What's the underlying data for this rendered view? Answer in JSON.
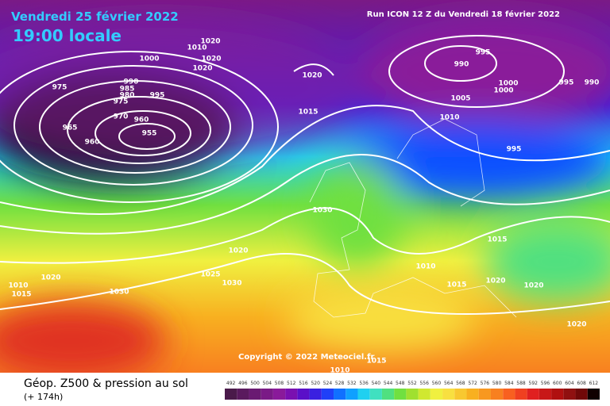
{
  "header": {
    "date": "Vendredi 25 février 2022",
    "time": "19:00 locale",
    "run": "Run ICON 12 Z du Vendredi 18 février 2022"
  },
  "copyright": "Copyright © 2022 Meteociel.fr",
  "footer": {
    "title": "Géop. Z500 & pression au sol",
    "lead": "(+ 174h)"
  },
  "isobar_labels": [
    1020,
    1010,
    1020,
    1000,
    1020,
    1020,
    990,
    985,
    980,
    975,
    995,
    975,
    970,
    965,
    960,
    955,
    960,
    1015,
    995,
    990,
    1000,
    1000,
    995,
    990,
    1005,
    1010,
    995,
    1030,
    1020,
    1025,
    1030,
    1010,
    1015,
    1020,
    1030,
    1015,
    1010,
    1015,
    1020,
    1020,
    1020,
    1015,
    1010
  ],
  "colorbar": {
    "values": [
      492,
      496,
      500,
      504,
      508,
      512,
      516,
      520,
      524,
      528,
      532,
      536,
      540,
      544,
      548,
      552,
      556,
      560,
      564,
      568,
      572,
      576,
      580,
      584,
      588,
      592,
      596,
      600,
      604,
      608,
      612
    ],
    "colors": [
      "#4a1a4a",
      "#5a1a5e",
      "#6a1a72",
      "#7a1a86",
      "#8a1a9a",
      "#7a10b0",
      "#5a10c8",
      "#3a20e0",
      "#2040f8",
      "#1070ff",
      "#10a0ff",
      "#20d0f0",
      "#40e0c0",
      "#50e080",
      "#70e040",
      "#a0e030",
      "#d0e830",
      "#f0f040",
      "#f8e040",
      "#f8c830",
      "#f8b020",
      "#f89820",
      "#f88020",
      "#f86020",
      "#f04020",
      "#e02020",
      "#c81818",
      "#b01010",
      "#901010",
      "#700808",
      "#100000"
    ]
  }
}
